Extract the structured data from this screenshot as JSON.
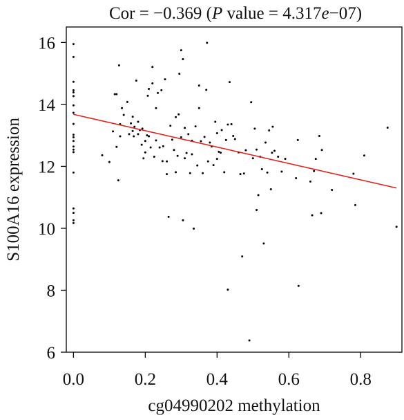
{
  "chart_data": {
    "type": "scatter",
    "title_parts": {
      "prefix": "Cor = −0.369 (",
      "p": "P",
      "mid": " value = 4.317",
      "e": "e",
      "suffix": "−07)"
    },
    "xlabel": "cg04990202 methylation",
    "ylabel": "S100A16 expression",
    "xlim": [
      -0.02,
      0.915
    ],
    "ylim": [
      6,
      16.5
    ],
    "x_ticks": [
      0.0,
      0.2,
      0.4,
      0.6,
      0.8
    ],
    "x_tick_labels": [
      "0.0",
      "0.2",
      "0.4",
      "0.6",
      "0.8"
    ],
    "y_ticks": [
      6,
      8,
      10,
      12,
      14,
      16
    ],
    "y_tick_labels": [
      "6",
      "8",
      "10",
      "12",
      "14",
      "16"
    ],
    "grid": false,
    "point_color": "#000000",
    "line_color": "#e0241b",
    "regression_line": {
      "x": [
        0.0,
        0.9
      ],
      "y": [
        13.68,
        11.3
      ]
    },
    "points": [
      [
        0.0,
        15.95
      ],
      [
        0.0,
        15.53
      ],
      [
        0.0,
        14.73
      ],
      [
        0.0,
        14.46
      ],
      [
        0.0,
        14.39
      ],
      [
        0.0,
        14.27
      ],
      [
        0.0,
        13.97
      ],
      [
        0.0,
        13.73
      ],
      [
        0.0,
        13.37
      ],
      [
        0.0,
        13.02
      ],
      [
        0.0,
        12.94
      ],
      [
        0.0,
        12.82
      ],
      [
        0.0,
        12.64
      ],
      [
        0.0,
        12.54
      ],
      [
        0.0,
        12.46
      ],
      [
        0.0,
        11.8
      ],
      [
        0.0,
        10.64
      ],
      [
        0.0,
        10.5
      ],
      [
        0.0,
        10.26
      ],
      [
        0.0,
        10.17
      ],
      [
        0.08,
        12.36
      ],
      [
        0.1,
        12.14
      ],
      [
        0.11,
        13.13
      ],
      [
        0.115,
        14.33
      ],
      [
        0.12,
        12.63
      ],
      [
        0.12,
        14.33
      ],
      [
        0.125,
        11.55
      ],
      [
        0.127,
        15.26
      ],
      [
        0.13,
        12.97
      ],
      [
        0.13,
        13.36
      ],
      [
        0.135,
        13.88
      ],
      [
        0.14,
        13.66
      ],
      [
        0.15,
        14.08
      ],
      [
        0.155,
        13.04
      ],
      [
        0.16,
        13.39
      ],
      [
        0.165,
        13.6
      ],
      [
        0.165,
        13.14
      ],
      [
        0.168,
        12.97
      ],
      [
        0.17,
        13.28
      ],
      [
        0.175,
        14.77
      ],
      [
        0.18,
        13.04
      ],
      [
        0.18,
        13.44
      ],
      [
        0.185,
        13.17
      ],
      [
        0.19,
        12.7
      ],
      [
        0.192,
        13.22
      ],
      [
        0.195,
        12.26
      ],
      [
        0.2,
        12.82
      ],
      [
        0.2,
        12.45
      ],
      [
        0.205,
        13.0
      ],
      [
        0.207,
        14.28
      ],
      [
        0.21,
        12.97
      ],
      [
        0.21,
        14.5
      ],
      [
        0.215,
        12.61
      ],
      [
        0.22,
        14.68
      ],
      [
        0.22,
        15.21
      ],
      [
        0.225,
        12.31
      ],
      [
        0.23,
        13.88
      ],
      [
        0.23,
        12.84
      ],
      [
        0.235,
        14.37
      ],
      [
        0.24,
        12.61
      ],
      [
        0.245,
        14.46
      ],
      [
        0.248,
        12.17
      ],
      [
        0.25,
        12.65
      ],
      [
        0.255,
        14.81
      ],
      [
        0.26,
        11.75
      ],
      [
        0.26,
        12.16
      ],
      [
        0.265,
        10.37
      ],
      [
        0.27,
        13.31
      ],
      [
        0.275,
        12.86
      ],
      [
        0.28,
        12.53
      ],
      [
        0.285,
        11.81
      ],
      [
        0.285,
        13.59
      ],
      [
        0.29,
        12.34
      ],
      [
        0.293,
        13.68
      ],
      [
        0.295,
        14.99
      ],
      [
        0.3,
        15.75
      ],
      [
        0.3,
        12.94
      ],
      [
        0.305,
        10.26
      ],
      [
        0.305,
        15.46
      ],
      [
        0.31,
        12.26
      ],
      [
        0.31,
        13.24
      ],
      [
        0.315,
        12.43
      ],
      [
        0.32,
        13.04
      ],
      [
        0.325,
        11.78
      ],
      [
        0.33,
        12.39
      ],
      [
        0.33,
        12.83
      ],
      [
        0.335,
        9.99
      ],
      [
        0.34,
        13.29
      ],
      [
        0.345,
        12.03
      ],
      [
        0.35,
        14.61
      ],
      [
        0.35,
        13.88
      ],
      [
        0.355,
        12.81
      ],
      [
        0.36,
        11.78
      ],
      [
        0.365,
        12.95
      ],
      [
        0.37,
        14.47
      ],
      [
        0.372,
        15.99
      ],
      [
        0.375,
        12.16
      ],
      [
        0.38,
        12.77
      ],
      [
        0.385,
        12.64
      ],
      [
        0.39,
        12.04
      ],
      [
        0.395,
        13.44
      ],
      [
        0.4,
        12.24
      ],
      [
        0.4,
        13.07
      ],
      [
        0.405,
        12.47
      ],
      [
        0.41,
        12.44
      ],
      [
        0.413,
        13.17
      ],
      [
        0.42,
        11.81
      ],
      [
        0.425,
        12.85
      ],
      [
        0.43,
        13.35
      ],
      [
        0.43,
        8.02
      ],
      [
        0.435,
        14.72
      ],
      [
        0.44,
        13.36
      ],
      [
        0.445,
        12.98
      ],
      [
        0.45,
        12.88
      ],
      [
        0.46,
        12.45
      ],
      [
        0.465,
        11.75
      ],
      [
        0.47,
        9.09
      ],
      [
        0.475,
        11.77
      ],
      [
        0.48,
        12.52
      ],
      [
        0.49,
        6.38
      ],
      [
        0.495,
        14.07
      ],
      [
        0.5,
        12.26
      ],
      [
        0.505,
        13.22
      ],
      [
        0.51,
        12.54
      ],
      [
        0.51,
        10.59
      ],
      [
        0.515,
        11.07
      ],
      [
        0.52,
        12.31
      ],
      [
        0.525,
        11.91
      ],
      [
        0.53,
        9.51
      ],
      [
        0.535,
        12.77
      ],
      [
        0.54,
        11.8
      ],
      [
        0.545,
        13.16
      ],
      [
        0.55,
        11.26
      ],
      [
        0.553,
        12.44
      ],
      [
        0.555,
        13.28
      ],
      [
        0.56,
        12.5
      ],
      [
        0.57,
        12.31
      ],
      [
        0.58,
        11.83
      ],
      [
        0.59,
        12.24
      ],
      [
        0.62,
        11.62
      ],
      [
        0.625,
        12.85
      ],
      [
        0.627,
        8.14
      ],
      [
        0.66,
        11.51
      ],
      [
        0.665,
        10.42
      ],
      [
        0.67,
        11.85
      ],
      [
        0.675,
        12.24
      ],
      [
        0.685,
        12.98
      ],
      [
        0.69,
        10.49
      ],
      [
        0.692,
        12.53
      ],
      [
        0.72,
        11.24
      ],
      [
        0.78,
        11.76
      ],
      [
        0.785,
        10.75
      ],
      [
        0.81,
        12.35
      ],
      [
        0.875,
        13.25
      ],
      [
        0.9,
        10.05
      ]
    ]
  }
}
